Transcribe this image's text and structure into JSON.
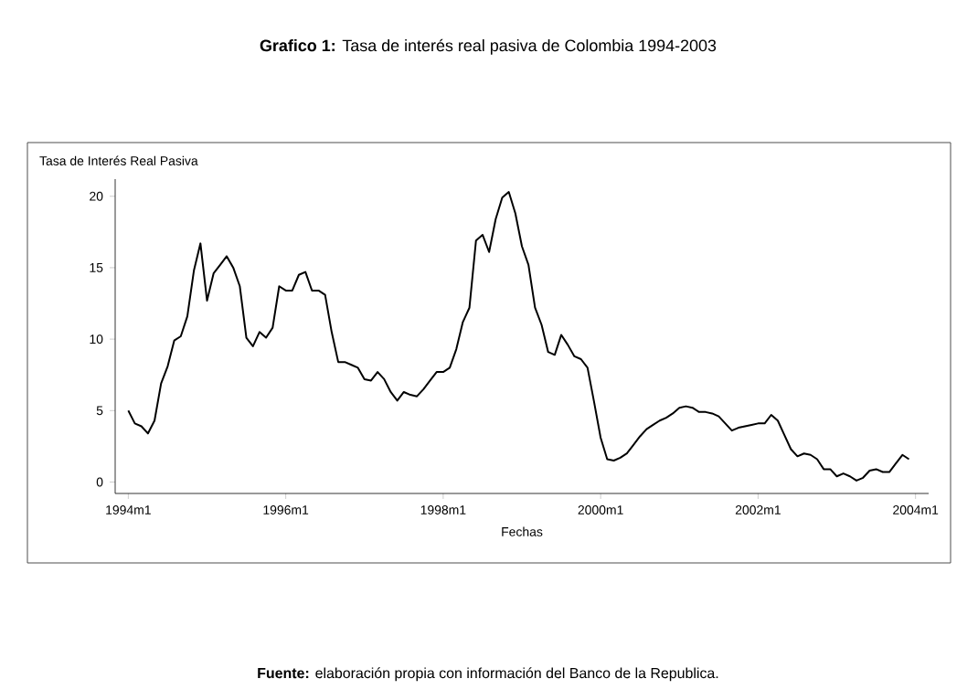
{
  "chart_data": {
    "type": "line",
    "title": "**Grafico 1:** Tasa de interés real pasiva de Colombia 1994-2003",
    "ylabel": "Tasa de Interés Real Pasiva",
    "xlabel": "Fechas",
    "annotations": [
      "**Fuente:** elaboración propia con información del Banco de la Republica."
    ],
    "x": [
      "1994-01",
      "1994-02",
      "1994-03",
      "1994-04",
      "1994-05",
      "1994-06",
      "1994-07",
      "1994-08",
      "1994-09",
      "1994-10",
      "1994-11",
      "1994-12",
      "1995-01",
      "1995-02",
      "1995-03",
      "1995-04",
      "1995-05",
      "1995-06",
      "1995-07",
      "1995-08",
      "1995-09",
      "1995-10",
      "1995-11",
      "1995-12",
      "1996-01",
      "1996-02",
      "1996-03",
      "1996-04",
      "1996-05",
      "1996-06",
      "1996-07",
      "1996-08",
      "1996-09",
      "1996-10",
      "1996-11",
      "1996-12",
      "1997-01",
      "1997-02",
      "1997-03",
      "1997-04",
      "1997-05",
      "1997-06",
      "1997-07",
      "1997-08",
      "1997-09",
      "1997-10",
      "1997-11",
      "1997-12",
      "1998-01",
      "1998-02",
      "1998-03",
      "1998-04",
      "1998-05",
      "1998-06",
      "1998-07",
      "1998-08",
      "1998-09",
      "1998-10",
      "1998-11",
      "1998-12",
      "1999-01",
      "1999-02",
      "1999-03",
      "1999-04",
      "1999-05",
      "1999-06",
      "1999-07",
      "1999-08",
      "1999-09",
      "1999-10",
      "1999-11",
      "1999-12",
      "2000-01",
      "2000-02",
      "2000-03",
      "2000-04",
      "2000-05",
      "2000-06",
      "2000-07",
      "2000-08",
      "2000-09",
      "2000-10",
      "2000-11",
      "2000-12",
      "2001-01",
      "2001-02",
      "2001-03",
      "2001-04",
      "2001-05",
      "2001-06",
      "2001-07",
      "2001-08",
      "2001-09",
      "2001-10",
      "2001-11",
      "2001-12",
      "2002-01",
      "2002-02",
      "2002-03",
      "2002-04",
      "2002-05",
      "2002-06",
      "2002-07",
      "2002-08",
      "2002-09",
      "2002-10",
      "2002-11",
      "2002-12",
      "2003-01",
      "2003-02",
      "2003-03",
      "2003-04",
      "2003-05",
      "2003-06",
      "2003-07",
      "2003-08",
      "2003-09",
      "2003-10",
      "2003-11",
      "2003-12"
    ],
    "series": [
      {
        "color": "#000000",
        "values": [
          5.0,
          4.1,
          3.9,
          3.4,
          4.3,
          6.9,
          8.1,
          9.9,
          10.2,
          11.6,
          14.8,
          16.7,
          12.7,
          14.6,
          15.2,
          15.8,
          15.0,
          13.7,
          10.1,
          9.5,
          10.5,
          10.1,
          10.8,
          13.7,
          13.4,
          13.4,
          14.5,
          14.7,
          13.4,
          13.4,
          13.1,
          10.5,
          8.4,
          8.4,
          8.2,
          8.0,
          7.2,
          7.1,
          7.7,
          7.2,
          6.3,
          5.7,
          6.3,
          6.1,
          6.0,
          6.5,
          7.1,
          7.7,
          7.7,
          8.0,
          9.3,
          11.2,
          12.2,
          16.9,
          17.3,
          16.1,
          18.4,
          19.9,
          20.3,
          18.8,
          16.5,
          15.2,
          12.2,
          11.0,
          9.1,
          8.9,
          10.3,
          9.6,
          8.8,
          8.6,
          8.0,
          5.6,
          3.1,
          1.6,
          1.5,
          1.7,
          2.0,
          2.6,
          3.2,
          3.7,
          4.0,
          4.3,
          4.5,
          4.8,
          5.2,
          5.3,
          5.2,
          4.9,
          4.9,
          4.8,
          4.6,
          4.1,
          3.6,
          3.8,
          3.9,
          4.0,
          4.1,
          4.1,
          4.7,
          4.3,
          3.3,
          2.3,
          1.8,
          2.0,
          1.9,
          1.6,
          0.9,
          0.9,
          0.4,
          0.6,
          0.4,
          0.1,
          0.3,
          0.8,
          0.9,
          0.7,
          0.7,
          1.3,
          1.9,
          1.6
        ]
      }
    ],
    "xlim": [
      "1993-11",
      "2004-03"
    ],
    "ylim": [
      -0.8,
      21.2
    ],
    "xticks": [
      {
        "value": "1994-01",
        "label": "1994m1"
      },
      {
        "value": "1996-01",
        "label": "1996m1"
      },
      {
        "value": "1998-01",
        "label": "1998m1"
      },
      {
        "value": "2000-01",
        "label": "2000m1"
      },
      {
        "value": "2002-01",
        "label": "2002m1"
      },
      {
        "value": "2004-01",
        "label": "2004m1"
      }
    ],
    "yticks": [
      0,
      5,
      10,
      15,
      20
    ],
    "grid": false,
    "marker": "none",
    "line_style": "solid"
  }
}
